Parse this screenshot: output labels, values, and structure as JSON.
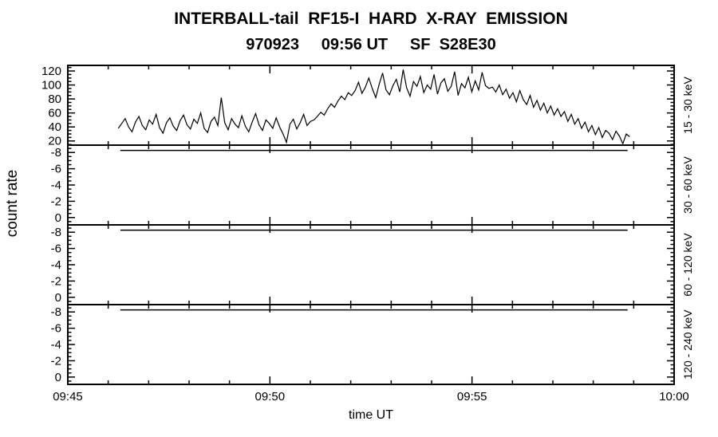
{
  "colors": {
    "fg": "#000000",
    "bg": "#ffffff"
  },
  "chart_data": {
    "type": "line",
    "title": "INTERBALL-tail  RF15-I  HARD  X-RAY  EMISSION",
    "subtitle": "970923     09:56 UT     SF  S28E30",
    "xlabel": "time UT",
    "ylabel": "count rate",
    "x_range_minutes": [
      45,
      60
    ],
    "x_minor_step": 1,
    "x_major_ticks": [
      {
        "minute": 45,
        "label": "09:45"
      },
      {
        "minute": 50,
        "label": "09:50"
      },
      {
        "minute": 55,
        "label": "09:55"
      },
      {
        "minute": 60,
        "label": "10:00"
      }
    ],
    "panels": [
      {
        "label": "15 - 30 keV",
        "ylim": [
          14,
          128
        ],
        "yticks": [
          20,
          40,
          60,
          80,
          100,
          120
        ],
        "y_minor_step": 5,
        "series": {
          "t_start": 46.25,
          "t_end": 58.9,
          "values": [
            38,
            45,
            52,
            40,
            33,
            47,
            55,
            42,
            36,
            50,
            44,
            58,
            39,
            31,
            46,
            53,
            41,
            35,
            49,
            57,
            43,
            37,
            51,
            45,
            60,
            38,
            32,
            48,
            54,
            42,
            82,
            46,
            36,
            52,
            44,
            39,
            56,
            41,
            33,
            47,
            59,
            43,
            35,
            50,
            45,
            38,
            53,
            40,
            30,
            18,
            44,
            51,
            37,
            46,
            58,
            42,
            48,
            50,
            55,
            61,
            57,
            66,
            73,
            68,
            77,
            84,
            79,
            89,
            85,
            92,
            104,
            88,
            97,
            110,
            95,
            82,
            101,
            117,
            93,
            86,
            99,
            108,
            90,
            122,
            96,
            84,
            105,
            98,
            112,
            89,
            100,
            94,
            115,
            87,
            103,
            109,
            91,
            98,
            119,
            85,
            102,
            96,
            111,
            90,
            106,
            93,
            118,
            99,
            95,
            97,
            90,
            100,
            86,
            94,
            81,
            89,
            76,
            92,
            79,
            72,
            85,
            68,
            78,
            64,
            74,
            60,
            70,
            57,
            66,
            55,
            62,
            48,
            58,
            44,
            52,
            38,
            47,
            33,
            42,
            29,
            39,
            25,
            35,
            31,
            22,
            34,
            27,
            16,
            30,
            26
          ]
        }
      },
      {
        "label": "30 - 60 keV",
        "ylim": [
          0.9,
          -8.9
        ],
        "yticks": [
          0,
          -2,
          -4,
          -6,
          -8
        ],
        "y_minor_step": 0.5,
        "flat_line": {
          "t_start": 46.3,
          "t_end": 58.85,
          "value": -8.25
        }
      },
      {
        "label": "60 - 120 keV",
        "ylim": [
          0.9,
          -8.9
        ],
        "yticks": [
          0,
          -2,
          -4,
          -6,
          -8
        ],
        "y_minor_step": 0.5,
        "flat_line": {
          "t_start": 46.3,
          "t_end": 58.85,
          "value": -8.25
        }
      },
      {
        "label": "120 - 240 keV",
        "ylim": [
          0.9,
          -8.9
        ],
        "yticks": [
          0,
          -2,
          -4,
          -6,
          -8
        ],
        "y_minor_step": 0.5,
        "flat_line": {
          "t_start": 46.3,
          "t_end": 58.85,
          "value": -8.25
        }
      }
    ]
  }
}
